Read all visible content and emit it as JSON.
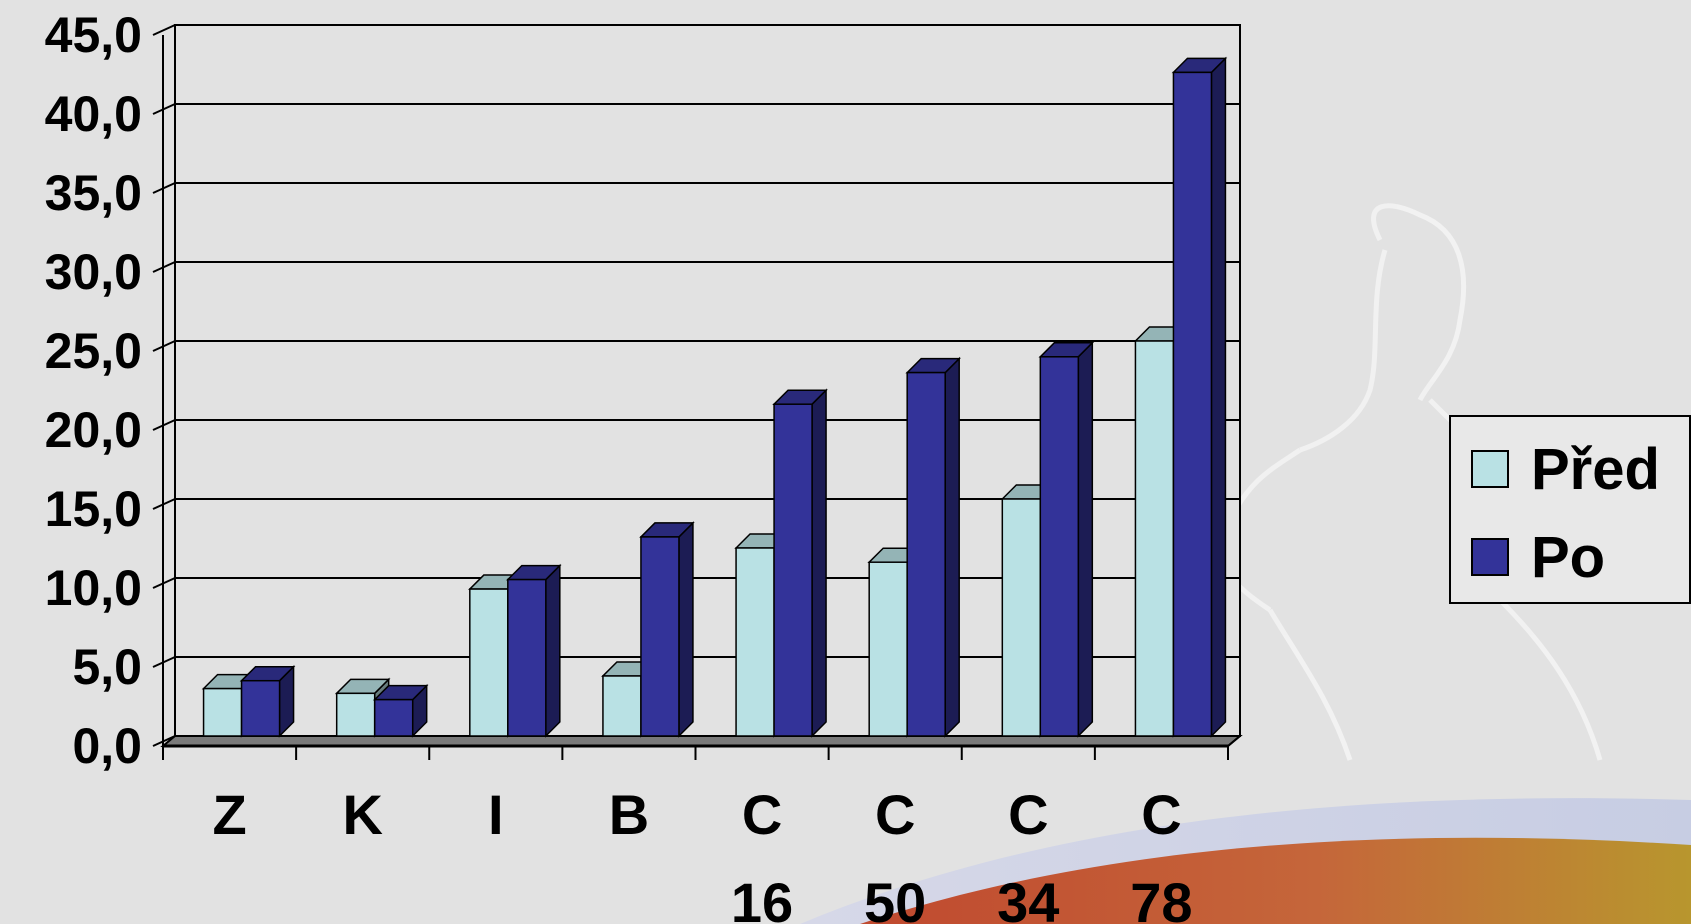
{
  "chart_data": {
    "type": "bar",
    "categories": [
      "Z",
      "K",
      "I",
      "B",
      "C 16",
      "C 50",
      "C 34",
      "C 78"
    ],
    "category_lines": [
      [
        "Z"
      ],
      [
        "K"
      ],
      [
        "I"
      ],
      [
        "B"
      ],
      [
        "C",
        "16"
      ],
      [
        "C",
        "50"
      ],
      [
        "C",
        "34"
      ],
      [
        "C",
        "78"
      ]
    ],
    "series": [
      {
        "name": "Před",
        "color": "#b9e1e4",
        "values": [
          3.0,
          2.7,
          9.3,
          3.8,
          11.9,
          11.0,
          15.0,
          25.0
        ]
      },
      {
        "name": "Po",
        "color": "#333399",
        "values": [
          3.5,
          2.3,
          9.9,
          12.6,
          21.0,
          23.0,
          24.0,
          42.0
        ]
      }
    ],
    "ylim": [
      0,
      45
    ],
    "yticks": [
      "0,0",
      "5,0",
      "10,0",
      "15,0",
      "20,0",
      "25,0",
      "30,0",
      "35,0",
      "40,0",
      "45,0"
    ],
    "grid": true,
    "legend": "right",
    "title": "",
    "xlabel": "",
    "ylabel": ""
  }
}
